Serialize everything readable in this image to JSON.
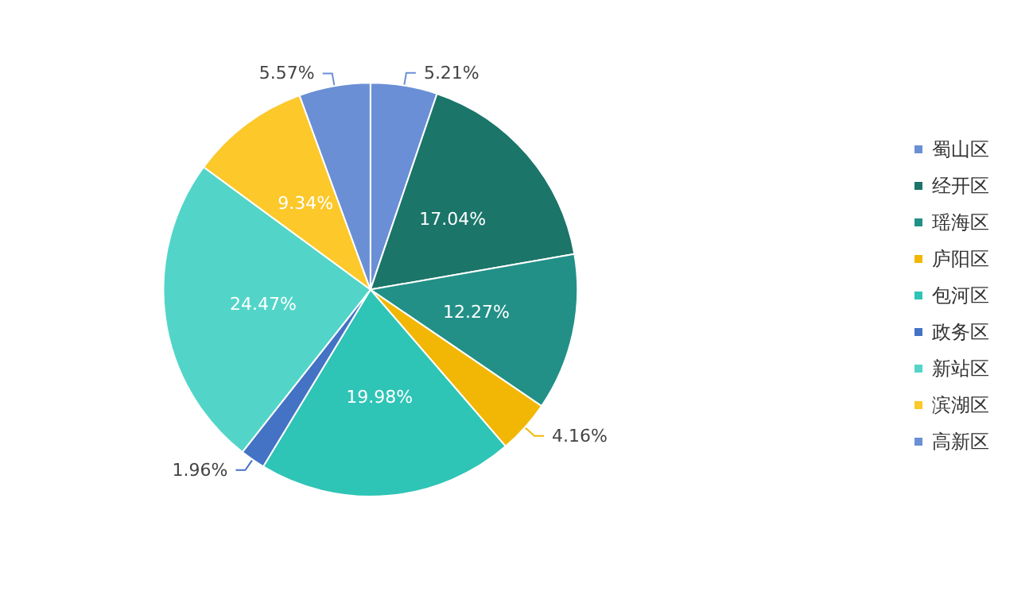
{
  "chart_data": {
    "type": "pie",
    "categories": [
      "蜀山区",
      "经开区",
      "瑶海区",
      "庐阳区",
      "包河区",
      "政务区",
      "新站区",
      "滨湖区",
      "高新区"
    ],
    "values": [
      5.21,
      17.04,
      12.27,
      4.16,
      19.98,
      1.96,
      24.47,
      9.34,
      5.57
    ],
    "colors": [
      "#6b8fd6",
      "#1b7569",
      "#229087",
      "#f2b705",
      "#2ec4b6",
      "#4472c4",
      "#52d5c8",
      "#fcc82a",
      "#6a8fd5"
    ],
    "value_labels": [
      "5.21%",
      "17.04%",
      "12.27%",
      "4.16%",
      "19.98%",
      "1.96%",
      "24.47%",
      "9.34%",
      "5.57%"
    ],
    "legend": "right"
  }
}
